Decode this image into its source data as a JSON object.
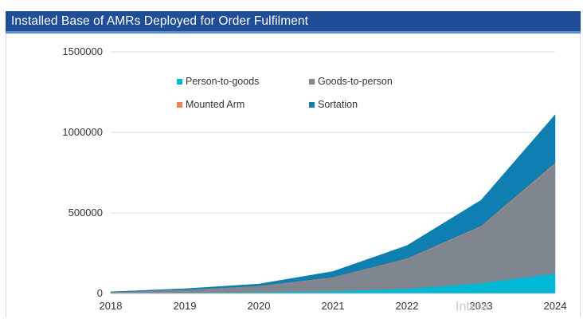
{
  "title": "Installed Base of AMRs Deployed for Order Fulfilment",
  "watermark_text": "Intera",
  "chart_data": {
    "type": "area",
    "stacked": true,
    "title": "Installed Base of AMRs Deployed for Order Fulfilment",
    "xlabel": "",
    "ylabel": "",
    "x": [
      "2018",
      "2019",
      "2020",
      "2021",
      "2022",
      "2023",
      "2024"
    ],
    "y_ticks": [
      "0",
      "500000",
      "1000000",
      "1500000"
    ],
    "ylim": [
      0,
      1500000
    ],
    "grid": true,
    "legend_position": "top-left inside",
    "series": [
      {
        "name": "Person-to-goods",
        "color": "#00b8d4",
        "values": [
          2000,
          5000,
          8000,
          15000,
          30000,
          65000,
          125000
        ]
      },
      {
        "name": "Goods-to-person",
        "color": "#7f8690",
        "values": [
          6000,
          18000,
          38000,
          85000,
          185000,
          350000,
          680000
        ]
      },
      {
        "name": "Mounted Arm",
        "color": "#f08060",
        "values": [
          200,
          500,
          1000,
          1500,
          2500,
          4000,
          5000
        ]
      },
      {
        "name": "Sortation",
        "color": "#0e7fb0",
        "values": [
          2000,
          6000,
          12000,
          35000,
          80000,
          160000,
          300000
        ]
      }
    ]
  }
}
